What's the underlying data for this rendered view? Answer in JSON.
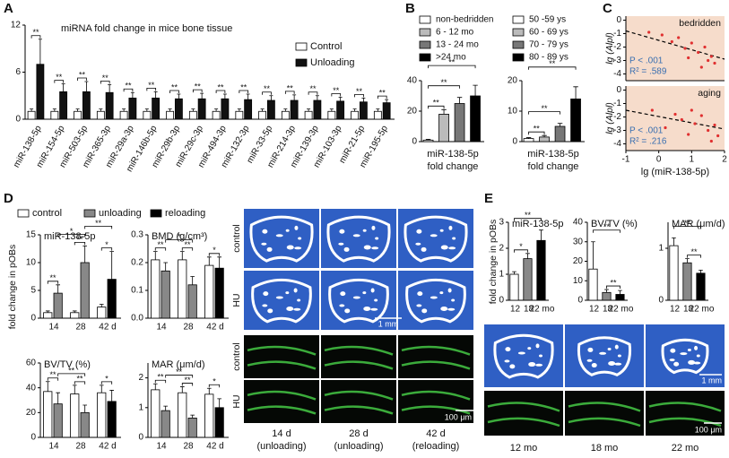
{
  "panel_labels": [
    "A",
    "B",
    "C",
    "D",
    "E"
  ],
  "chart_data": [
    {
      "type": "bar",
      "title": "miRNA fold change in mice bone tissue",
      "categories": [
        "miR-138-5p",
        "miR-154-5p",
        "miR-503-5p",
        "miR-365-3p",
        "miR-29a-3p",
        "miR-146b-5p",
        "miR-29b-3p",
        "miR-29c-3p",
        "miR-494-3p",
        "miR-132-3p",
        "miR-33-5p",
        "miR-214-3p",
        "miR-139-3p",
        "miR-103-3p",
        "miR-21-5p",
        "miR-195-5p"
      ],
      "series": [
        {
          "name": "Control",
          "color": "#ffffff",
          "values": [
            1,
            1,
            1,
            1,
            1,
            1,
            1,
            1,
            1,
            1,
            1,
            1,
            1,
            1,
            1,
            1
          ],
          "errors": [
            0.3,
            0.3,
            0.3,
            0.3,
            0.3,
            0.3,
            0.3,
            0.3,
            0.3,
            0.3,
            0.3,
            0.3,
            0.3,
            0.3,
            0.3,
            0.3
          ]
        },
        {
          "name": "Unloading",
          "color": "#111111",
          "values": [
            7,
            3.5,
            3.5,
            3.4,
            2.7,
            2.7,
            2.6,
            2.6,
            2.6,
            2.5,
            2.4,
            2.4,
            2.4,
            2.3,
            2.2,
            2.1
          ],
          "errors": [
            3.2,
            1,
            1.3,
            1,
            0.7,
            0.8,
            0.6,
            0.7,
            0.6,
            0.7,
            0.6,
            0.7,
            0.6,
            0.5,
            0.5,
            0.4
          ]
        }
      ],
      "ylim": [
        0,
        12
      ],
      "yticks": [
        0,
        6,
        12
      ],
      "significance": [
        "**",
        "**",
        "**",
        "**",
        "**",
        "**",
        "**",
        "**",
        "**",
        "**",
        "**",
        "**",
        "**",
        "**",
        "**",
        "**"
      ]
    },
    {
      "type": "bar",
      "categories": [
        "non-bedridden",
        "6 - 12 mo",
        "13 - 24 mo",
        ">24 mo"
      ],
      "colors": [
        "#ffffff",
        "#bbbbbb",
        "#777777",
        "#000000"
      ],
      "values": [
        1,
        18,
        25,
        30
      ],
      "errors": [
        0.5,
        3,
        4,
        7
      ],
      "ylim": [
        0,
        40
      ],
      "yticks": [
        0,
        20,
        40
      ],
      "xlabel": [
        "miR-138-5p",
        "fold change"
      ],
      "significance": [
        "**",
        "**",
        "**"
      ]
    },
    {
      "type": "bar",
      "categories": [
        "50 -59 ys",
        "60 - 69 ys",
        "70 - 79 ys",
        "80 - 89 ys"
      ],
      "colors": [
        "#ffffff",
        "#bbbbbb",
        "#777777",
        "#000000"
      ],
      "values": [
        1,
        1.5,
        5,
        14
      ],
      "errors": [
        0.3,
        0.5,
        1,
        4
      ],
      "ylim": [
        0,
        20
      ],
      "yticks": [
        0,
        10,
        20
      ],
      "xlabel": [
        "miR-138-5p",
        "fold change"
      ],
      "significance": [
        "**",
        "**",
        "**"
      ]
    },
    {
      "type": "scatter",
      "ylabel": "lg (Alpl)",
      "annotations": [
        "bedridden",
        "P < .001",
        "R² = .589"
      ],
      "x": [
        -0.3,
        0.1,
        0.4,
        0.6,
        0.8,
        1.0,
        1.2,
        1.4,
        1.5,
        1.6,
        1.7,
        1.3,
        0.9
      ],
      "values": [
        -0.9,
        -1.1,
        -1.6,
        -1.3,
        -2.1,
        -1.7,
        -2.4,
        -2.0,
        -3.0,
        -2.7,
        -3.2,
        -3.5,
        -2.8
      ],
      "color": "#e03030",
      "fit_x": [
        -1,
        2
      ],
      "fit_y": [
        -0.8,
        -2.9
      ],
      "xlim": [
        -1,
        2
      ],
      "ylim": [
        -4.5,
        0.3
      ],
      "yticks": [
        0,
        -1,
        -2,
        -3,
        -4
      ]
    },
    {
      "type": "scatter",
      "ylabel": "lg (Alpl)",
      "xlabel": "lg (miR-138-5p)",
      "annotations": [
        "aging",
        "P < .001",
        "R² = .216"
      ],
      "x": [
        -0.2,
        0.2,
        0.5,
        0.7,
        0.9,
        1.1,
        1.3,
        1.5,
        1.6,
        1.7,
        1.8,
        1.0
      ],
      "values": [
        -1.5,
        -2.8,
        -1.8,
        -2.2,
        -3.3,
        -2.5,
        -1.9,
        -3.0,
        -3.8,
        -2.6,
        -3.4,
        -1.5
      ],
      "color": "#e03030",
      "fit_x": [
        -1,
        2
      ],
      "fit_y": [
        -1.5,
        -2.9
      ],
      "xlim": [
        -1,
        2
      ],
      "ylim": [
        -4.5,
        0.3
      ],
      "xticks": [
        -1,
        0,
        1,
        2
      ],
      "yticks": [
        0,
        -1,
        -2,
        -3,
        -4
      ]
    },
    {
      "type": "bar",
      "title": "miR-138-5p",
      "ylabel": "fold change in pOBs",
      "categories": [
        "14",
        "28",
        "42 d"
      ],
      "series": [
        {
          "name": "control",
          "color": "#ffffff",
          "values": [
            1,
            1,
            2
          ],
          "errors": [
            0.3,
            0.3,
            0.5
          ]
        },
        {
          "name": "unloading",
          "color": "#888888",
          "values": [
            4.5,
            10,
            null
          ],
          "errors": [
            1.5,
            3,
            null
          ]
        },
        {
          "name": "reloading",
          "color": "#000000",
          "values": [
            null,
            null,
            7
          ],
          "errors": [
            null,
            null,
            5
          ]
        }
      ],
      "ylim": [
        0,
        15
      ],
      "yticks": [
        0,
        5,
        10,
        15
      ],
      "significance": [
        "**",
        "**",
        "*",
        "**",
        "*"
      ]
    },
    {
      "type": "bar",
      "title": "BMD (g/cm³)",
      "categories": [
        "14",
        "28",
        "42 d"
      ],
      "series": [
        {
          "color": "#ffffff",
          "values": [
            0.21,
            0.21,
            0.19
          ],
          "errors": [
            0.03,
            0.03,
            0.03
          ]
        },
        {
          "color": "#888888",
          "values": [
            0.17,
            0.12,
            null
          ],
          "errors": [
            0.03,
            0.03,
            null
          ]
        },
        {
          "color": "#000000",
          "values": [
            null,
            null,
            0.18
          ],
          "errors": [
            null,
            null,
            0.04
          ]
        }
      ],
      "ylim": [
        0,
        0.3
      ],
      "yticks": [
        {
          "value": 0,
          "label": "0.0"
        },
        0.1,
        0.2,
        0.3
      ],
      "significance": [
        "**",
        "*",
        "**",
        "*"
      ]
    },
    {
      "type": "bar",
      "title": "BV/TV (%)",
      "categories": [
        "14",
        "28",
        "42 d"
      ],
      "series": [
        {
          "color": "#ffffff",
          "values": [
            37,
            35,
            36
          ],
          "errors": [
            8,
            7,
            6
          ]
        },
        {
          "color": "#888888",
          "values": [
            27,
            20,
            null
          ],
          "errors": [
            9,
            6,
            null
          ]
        },
        {
          "color": "#000000",
          "values": [
            null,
            null,
            29
          ],
          "errors": [
            null,
            null,
            9
          ]
        }
      ],
      "ylim": [
        0,
        60
      ],
      "yticks": [
        0,
        20,
        40,
        60
      ],
      "significance": [
        "**",
        "**",
        "**",
        "*"
      ]
    },
    {
      "type": "bar",
      "title": "MAR (μm/d)",
      "categories": [
        "14",
        "28",
        "42 d"
      ],
      "series": [
        {
          "color": "#ffffff",
          "values": [
            1.6,
            1.5,
            1.45
          ],
          "errors": [
            0.2,
            0.2,
            0.2
          ]
        },
        {
          "color": "#888888",
          "values": [
            0.9,
            0.65,
            null
          ],
          "errors": [
            0.15,
            0.1,
            null
          ]
        },
        {
          "color": "#000000",
          "values": [
            null,
            null,
            1.0
          ],
          "errors": [
            null,
            null,
            0.3
          ]
        }
      ],
      "ylim": [
        0,
        2.5
      ],
      "yticks": [
        0,
        1,
        2
      ],
      "significance": [
        "**",
        "**",
        "**",
        "*"
      ]
    },
    {
      "type": "bar",
      "title": "miR-138-5p",
      "ylabel": "fold change in pOBs",
      "categories": [
        "12",
        "18",
        "22 mo"
      ],
      "colors": [
        "#ffffff",
        "#888888",
        "#000000"
      ],
      "values": [
        1,
        1.6,
        2.3
      ],
      "errors": [
        0.1,
        0.2,
        0.4
      ],
      "ylim": [
        0,
        3
      ],
      "yticks": [
        0,
        1,
        2,
        3
      ],
      "significance": [
        "*",
        "**"
      ]
    },
    {
      "type": "bar",
      "title": "BV/TV (%)",
      "categories": [
        "12",
        "18",
        "22 mo"
      ],
      "colors": [
        "#ffffff",
        "#888888",
        "#000000"
      ],
      "values": [
        16,
        4,
        3
      ],
      "errors": [
        14,
        1.5,
        2
      ],
      "ylim": [
        0,
        40
      ],
      "yticks": [
        0,
        10,
        20,
        30,
        40
      ],
      "significance": [
        "**",
        "**"
      ]
    },
    {
      "type": "bar",
      "title": "MAR (μm/d)",
      "categories": [
        "12",
        "18",
        "22 mo"
      ],
      "colors": [
        "#ffffff",
        "#888888",
        "#000000"
      ],
      "values": [
        1.05,
        0.72,
        0.52
      ],
      "errors": [
        0.15,
        0.08,
        0.06
      ],
      "ylim": [
        0,
        1.5
      ],
      "yticks": [
        0,
        1
      ],
      "significance": [
        "**",
        "**"
      ]
    }
  ],
  "micrographs_d": {
    "ct_rows": [
      "control",
      "HU"
    ],
    "fluor_rows": [
      "control",
      "HU"
    ],
    "scale_bars": [
      "1 mm",
      "100 μm"
    ],
    "columns": [
      [
        "14 d",
        "(unloading)"
      ],
      [
        "28 d",
        "(unloading)"
      ],
      [
        "42 d",
        "(reloading)"
      ]
    ]
  },
  "micrographs_e": {
    "scale_bars": [
      "1 mm",
      "100 μm"
    ],
    "columns": [
      "12 mo",
      "18 mo",
      "22 mo"
    ]
  }
}
